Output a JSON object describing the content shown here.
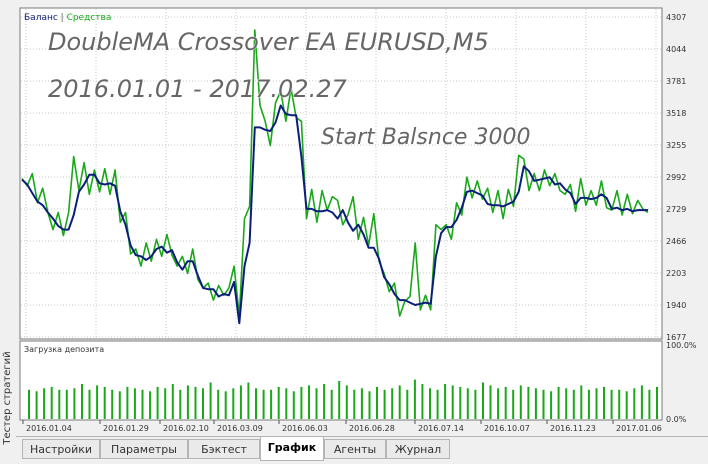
{
  "panel": {
    "side_label": "Тестер стратегий",
    "tabs": [
      {
        "label": "Настройки",
        "active": false
      },
      {
        "label": "Параметры",
        "active": false
      },
      {
        "label": "Бэктест",
        "active": false
      },
      {
        "label": "График",
        "active": true
      },
      {
        "label": "Агенты",
        "active": false
      },
      {
        "label": "Журнал",
        "active": false
      }
    ]
  },
  "overlay_text": {
    "line1": "DoubleMA Crossover EA EURUSD,M5",
    "line2": "2016.01.01 - 2017.02.27",
    "line3": "Start Balsnce 3000"
  },
  "chart_data": [
    {
      "type": "line",
      "legend": [
        {
          "name": "Баланс",
          "color": "#0b1f7a"
        },
        {
          "name": "Средства",
          "color": "#1aa81a"
        }
      ],
      "legend_separator": " | ",
      "ylim": [
        1677,
        4307
      ],
      "yticks": [
        4307,
        4044,
        3781,
        3518,
        3255,
        2992,
        2729,
        2466,
        2203,
        1940,
        1677
      ],
      "series": [
        {
          "name": "Баланс",
          "color": "#0b1f7a",
          "values": [
            2970,
            2930,
            2860,
            2790,
            2760,
            2700,
            2650,
            2590,
            2560,
            2560,
            2680,
            2870,
            2930,
            3010,
            3010,
            2940,
            2930,
            2940,
            2920,
            2710,
            2600,
            2430,
            2350,
            2340,
            2310,
            2340,
            2400,
            2420,
            2370,
            2390,
            2290,
            2230,
            2300,
            2300,
            2180,
            2080,
            2070,
            2070,
            2010,
            2030,
            2020,
            2130,
            1790,
            2260,
            2450,
            3400,
            3400,
            3380,
            3370,
            3440,
            3580,
            3510,
            3500,
            3500,
            3160,
            2730,
            2730,
            2710,
            2710,
            2720,
            2700,
            2650,
            2720,
            2620,
            2550,
            2600,
            2520,
            2410,
            2410,
            2320,
            2170,
            2110,
            2030,
            1980,
            1980,
            1960,
            1940,
            1950,
            1960,
            1950,
            2340,
            2530,
            2580,
            2580,
            2640,
            2740,
            2870,
            2880,
            2860,
            2840,
            2770,
            2760,
            2760,
            2750,
            2770,
            2790,
            2870,
            3080,
            3040,
            2960,
            2970,
            2980,
            2990,
            2930,
            2940,
            2890,
            2860,
            2770,
            2820,
            2820,
            2810,
            2820,
            2850,
            2820,
            2730,
            2740,
            2720,
            2730,
            2710,
            2720,
            2720,
            2720
          ],
          "dates": [
            "2016.01.04",
            "2016.01.29",
            "2016.02.10",
            "2016.03.09",
            "2016.06.03",
            "2016.06.28",
            "2016.07.14",
            "2016.10.07",
            "2016.11.23",
            "2017.01.06"
          ]
        },
        {
          "name": "Средства",
          "color": "#1aa81a",
          "values": [
            2980,
            2920,
            3020,
            2780,
            2900,
            2700,
            2560,
            2700,
            2510,
            2700,
            3160,
            2880,
            3110,
            2850,
            3050,
            2870,
            3060,
            2850,
            3050,
            2620,
            2700,
            2360,
            2400,
            2260,
            2450,
            2300,
            2480,
            2340,
            2520,
            2350,
            2260,
            2340,
            2200,
            2400,
            2150,
            2080,
            2120,
            1980,
            2100,
            2020,
            2080,
            2260,
            1850,
            2650,
            2750,
            4200,
            3580,
            3450,
            3250,
            3600,
            3700,
            3450,
            3720,
            3480,
            3450,
            2650,
            2890,
            2620,
            2880,
            2720,
            2830,
            2800,
            2600,
            2680,
            2830,
            2480,
            2660,
            2430,
            2690,
            2300,
            2200,
            2050,
            2120,
            1850,
            1970,
            2010,
            2450,
            1900,
            2020,
            1900,
            2600,
            2560,
            2600,
            2480,
            2780,
            2680,
            2990,
            2820,
            2960,
            2810,
            2900,
            2700,
            2880,
            2650,
            2890,
            2750,
            3170,
            3140,
            2880,
            3020,
            2880,
            3050,
            2920,
            3020,
            2880,
            2850,
            2930,
            2710,
            2980,
            2760,
            2880,
            2760,
            2960,
            2740,
            2720,
            2880,
            2680,
            2850,
            2690,
            2800,
            2730,
            2700
          ],
          "dates": []
        }
      ]
    },
    {
      "type": "bar",
      "title": "Загрузка депозита",
      "ylim": [
        0,
        100
      ],
      "yticks_labels": [
        "100.0%",
        "0.0%"
      ],
      "color": "#1aa81a",
      "values": [
        40,
        38,
        42,
        44,
        40,
        40,
        42,
        48,
        40,
        46,
        44,
        40,
        38,
        44,
        42,
        40,
        38,
        44,
        42,
        48,
        40,
        46,
        44,
        42,
        50,
        40,
        38,
        42,
        46,
        50,
        42,
        40,
        40,
        44,
        42,
        38,
        44,
        46,
        42,
        48,
        40,
        52,
        46,
        40,
        42,
        38,
        44,
        40,
        42,
        46,
        40,
        54,
        48,
        42,
        40,
        48,
        46,
        44,
        42,
        40,
        50,
        46,
        42,
        44,
        40,
        46,
        44,
        42,
        40,
        38,
        44,
        42,
        40,
        46,
        40,
        42,
        44,
        40,
        40,
        38,
        42,
        46,
        40,
        44
      ]
    }
  ]
}
